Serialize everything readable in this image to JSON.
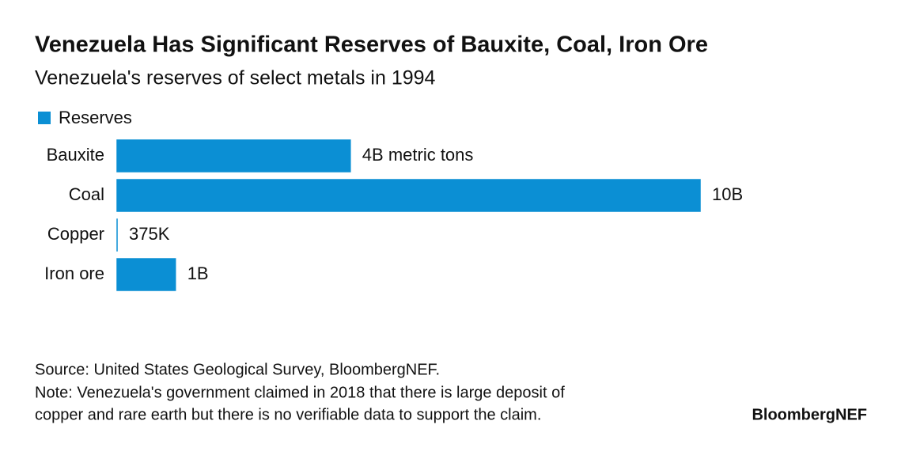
{
  "chart_data": {
    "type": "hbar",
    "title": "Venezuela Has Significant Reserves of Bauxite, Coal, Iron Ore",
    "subtitle": "Venezuela's reserves of select metals in 1994",
    "categories": [
      "Bauxite",
      "Coal",
      "Copper",
      "Iron ore"
    ],
    "series": [
      {
        "name": "Reserves",
        "color": "#0b8fd4",
        "values": [
          4000000000,
          10000000000,
          375000,
          1000000000
        ],
        "value_labels": [
          "4B metric tons",
          "10B",
          "375K",
          "1B"
        ]
      }
    ],
    "source": "Source: United States Geological Survey, BloombergNEF.",
    "note": [
      "Note: Venezuela's government claimed in 2018 that there is large deposit of",
      "copper and rare earth but there is no verifiable data to support the claim."
    ],
    "logo": "BloombergNEF"
  }
}
